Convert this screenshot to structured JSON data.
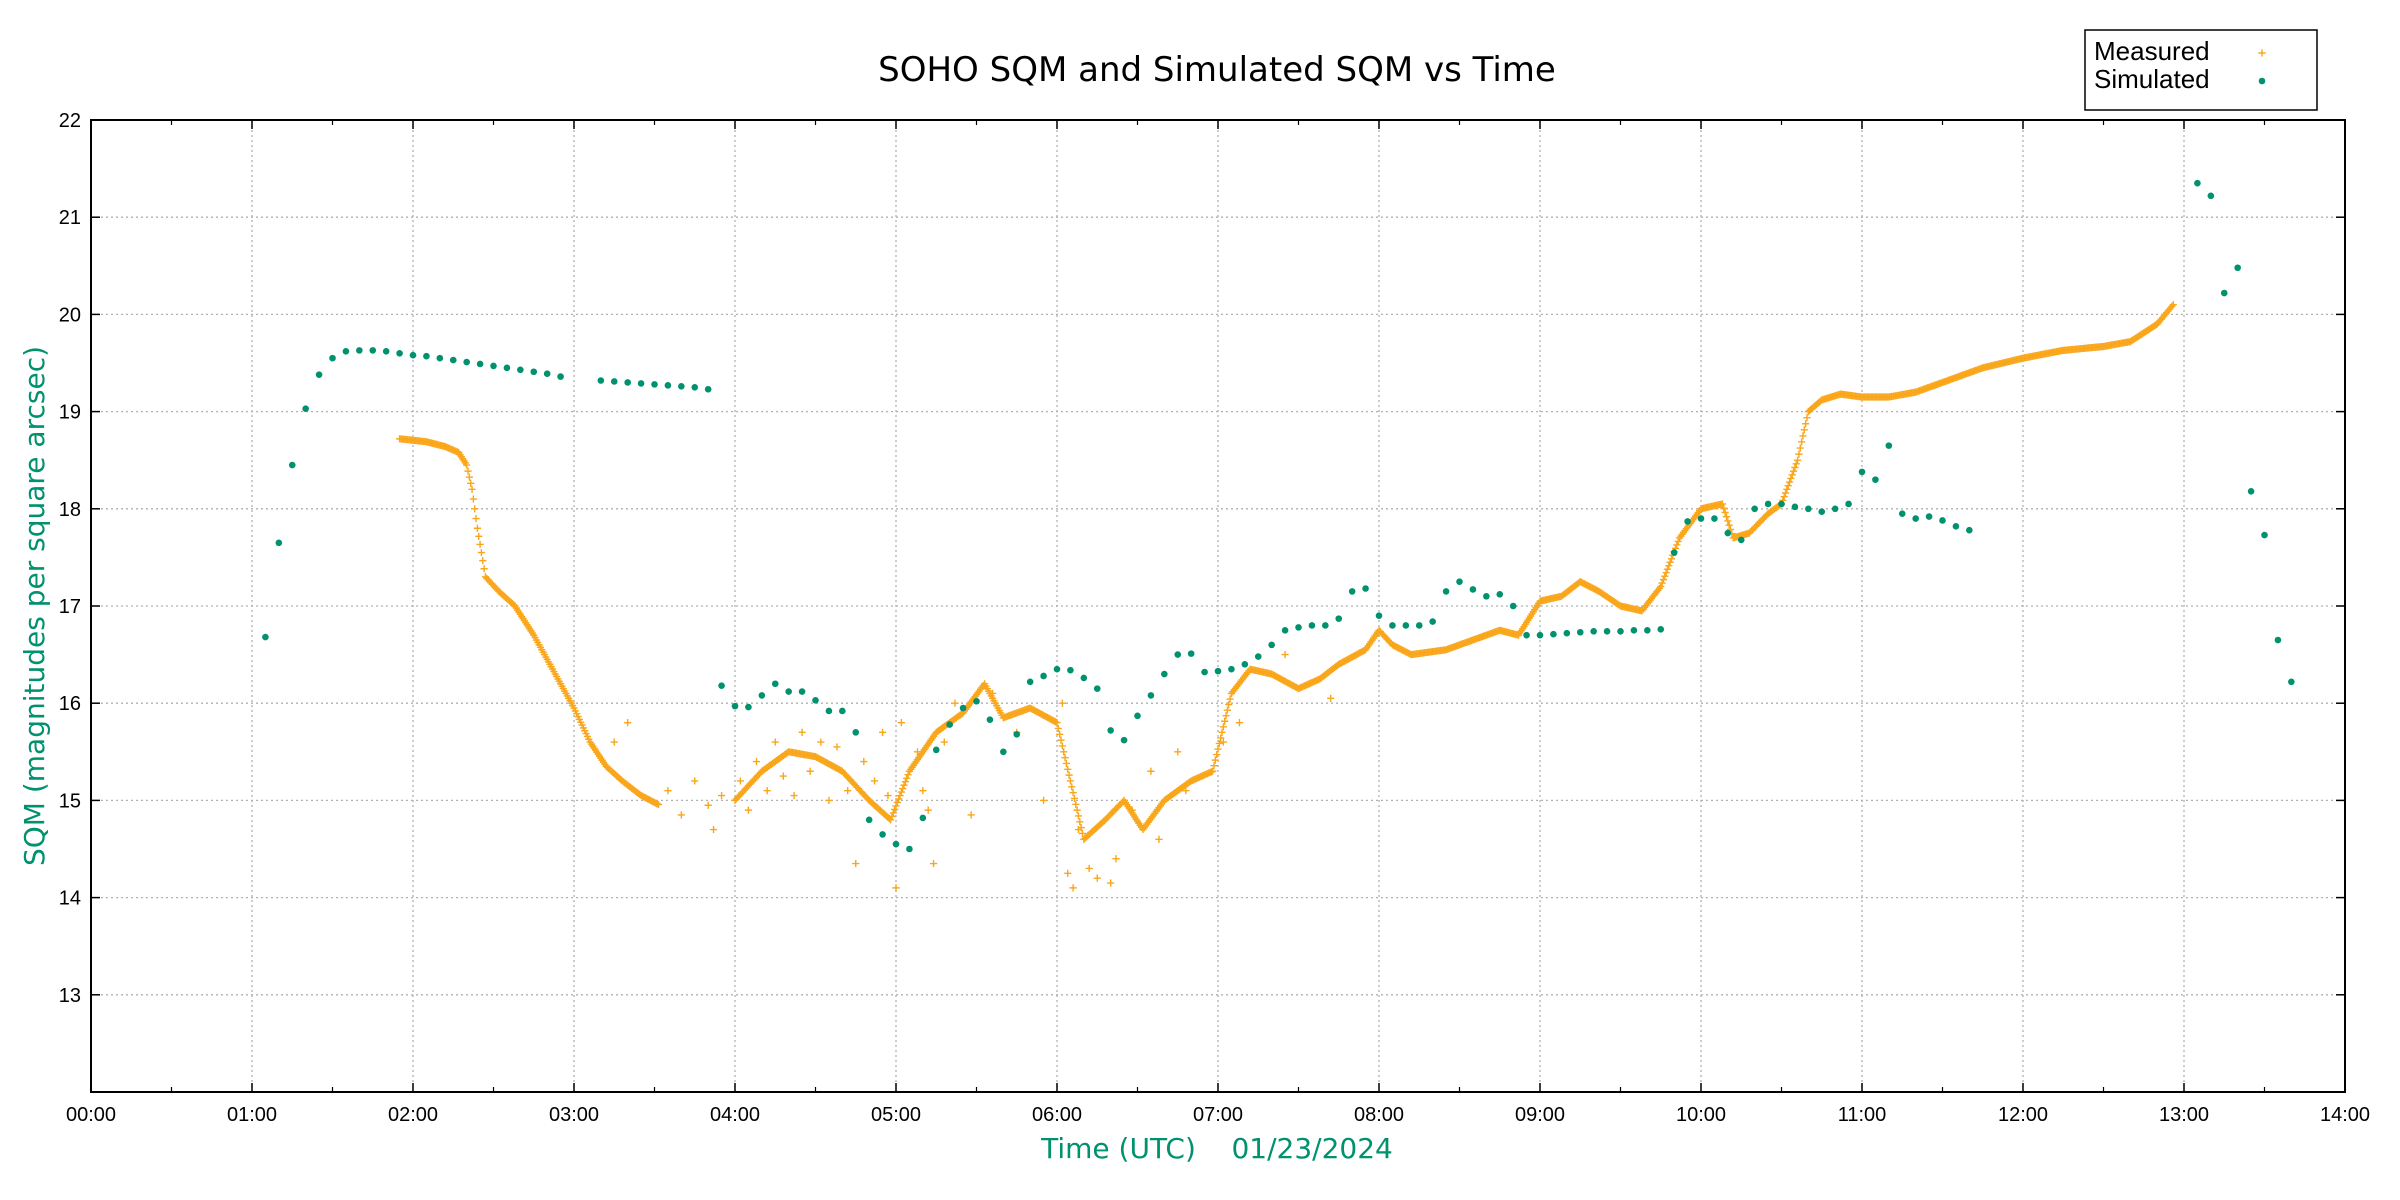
{
  "chart_data": {
    "type": "scatter",
    "title": "SOHO SQM and Simulated SQM vs Time",
    "xlabel": "Time (UTC)    01/23/2024",
    "ylabel": "SQM (magnitudes per square arcsec)",
    "label_color": "#00916e",
    "x_unit": "time",
    "xlim": [
      "00:00",
      "14:00"
    ],
    "ylim": [
      12,
      22
    ],
    "x_ticks": [
      "00:00",
      "01:00",
      "02:00",
      "03:00",
      "04:00",
      "05:00",
      "06:00",
      "07:00",
      "08:00",
      "09:00",
      "10:00",
      "11:00",
      "12:00",
      "13:00",
      "14:00"
    ],
    "y_ticks": [
      "13",
      "14",
      "15",
      "16",
      "17",
      "18",
      "19",
      "20",
      "21",
      "22"
    ],
    "grid": true,
    "legend_position": "top-right",
    "series": [
      {
        "name": "Measured",
        "color": "#f9a61b",
        "marker": "plus",
        "curve": [
          [
            "01:55",
            18.72
          ],
          [
            "02:05",
            18.69
          ],
          [
            "02:12",
            18.64
          ],
          [
            "02:17",
            18.58
          ],
          [
            "02:20",
            18.45
          ],
          [
            "02:22",
            18.2
          ],
          [
            "02:24",
            17.8
          ],
          [
            "02:27",
            17.3
          ],
          [
            "02:32",
            17.15
          ],
          [
            "02:38",
            17.0
          ],
          [
            "02:45",
            16.7
          ],
          [
            "02:52",
            16.35
          ],
          [
            "03:00",
            15.95
          ],
          [
            "03:06",
            15.6
          ],
          [
            "03:12",
            15.35
          ],
          [
            "03:18",
            15.2
          ],
          [
            "03:25",
            15.05
          ],
          [
            "03:32",
            14.95
          ],
          [
            "04:00",
            15.0
          ],
          [
            "04:10",
            15.3
          ],
          [
            "04:20",
            15.5
          ],
          [
            "04:30",
            15.45
          ],
          [
            "04:40",
            15.3
          ],
          [
            "04:50",
            15.0
          ],
          [
            "04:58",
            14.8
          ],
          [
            "05:05",
            15.3
          ],
          [
            "05:15",
            15.7
          ],
          [
            "05:25",
            15.9
          ],
          [
            "05:33",
            16.2
          ],
          [
            "05:40",
            15.85
          ],
          [
            "05:50",
            15.95
          ],
          [
            "06:00",
            15.8
          ],
          [
            "06:10",
            14.6
          ],
          [
            "06:18",
            14.8
          ],
          [
            "06:25",
            15.0
          ],
          [
            "06:32",
            14.7
          ],
          [
            "06:40",
            15.0
          ],
          [
            "06:50",
            15.2
          ],
          [
            "06:58",
            15.3
          ],
          [
            "07:05",
            16.1
          ],
          [
            "07:12",
            16.35
          ],
          [
            "07:20",
            16.3
          ],
          [
            "07:30",
            16.15
          ],
          [
            "07:38",
            16.25
          ],
          [
            "07:45",
            16.4
          ],
          [
            "07:55",
            16.55
          ],
          [
            "08:00",
            16.75
          ],
          [
            "08:05",
            16.6
          ],
          [
            "08:12",
            16.5
          ],
          [
            "08:25",
            16.55
          ],
          [
            "08:35",
            16.65
          ],
          [
            "08:45",
            16.75
          ],
          [
            "08:52",
            16.7
          ],
          [
            "09:00",
            17.05
          ],
          [
            "09:08",
            17.1
          ],
          [
            "09:15",
            17.25
          ],
          [
            "09:22",
            17.15
          ],
          [
            "09:30",
            17.0
          ],
          [
            "09:38",
            16.95
          ],
          [
            "09:45",
            17.2
          ],
          [
            "09:52",
            17.7
          ],
          [
            "10:00",
            18.0
          ],
          [
            "10:08",
            18.05
          ],
          [
            "10:12",
            17.7
          ],
          [
            "10:18",
            17.75
          ],
          [
            "10:25",
            17.95
          ],
          [
            "10:30",
            18.05
          ],
          [
            "10:36",
            18.5
          ],
          [
            "10:40",
            19.0
          ],
          [
            "10:45",
            19.12
          ],
          [
            "10:52",
            19.18
          ],
          [
            "11:00",
            19.15
          ],
          [
            "11:10",
            19.15
          ],
          [
            "11:20",
            19.2
          ],
          [
            "11:30",
            19.3
          ],
          [
            "11:45",
            19.45
          ],
          [
            "12:00",
            19.55
          ],
          [
            "12:15",
            19.63
          ],
          [
            "12:30",
            19.67
          ],
          [
            "12:40",
            19.72
          ],
          [
            "12:50",
            19.9
          ],
          [
            "12:56",
            20.1
          ]
        ],
        "scatter": [
          [
            "03:15",
            15.6
          ],
          [
            "03:20",
            15.8
          ],
          [
            "03:35",
            15.1
          ],
          [
            "03:40",
            14.85
          ],
          [
            "03:45",
            15.2
          ],
          [
            "03:50",
            14.95
          ],
          [
            "03:52",
            14.7
          ],
          [
            "03:55",
            15.05
          ],
          [
            "04:02",
            15.2
          ],
          [
            "04:05",
            14.9
          ],
          [
            "04:08",
            15.4
          ],
          [
            "04:12",
            15.1
          ],
          [
            "04:15",
            15.6
          ],
          [
            "04:18",
            15.25
          ],
          [
            "04:22",
            15.05
          ],
          [
            "04:25",
            15.7
          ],
          [
            "04:28",
            15.3
          ],
          [
            "04:32",
            15.6
          ],
          [
            "04:35",
            15.0
          ],
          [
            "04:38",
            15.55
          ],
          [
            "04:42",
            15.1
          ],
          [
            "04:45",
            14.35
          ],
          [
            "04:48",
            15.4
          ],
          [
            "04:52",
            15.2
          ],
          [
            "04:55",
            15.7
          ],
          [
            "04:57",
            15.05
          ],
          [
            "05:00",
            14.1
          ],
          [
            "05:02",
            15.8
          ],
          [
            "05:08",
            15.5
          ],
          [
            "05:10",
            15.1
          ],
          [
            "05:12",
            14.9
          ],
          [
            "05:14",
            14.35
          ],
          [
            "05:18",
            15.6
          ],
          [
            "05:22",
            16.0
          ],
          [
            "05:28",
            14.85
          ],
          [
            "05:36",
            16.1
          ],
          [
            "05:45",
            15.7
          ],
          [
            "05:55",
            15.0
          ],
          [
            "06:02",
            16.0
          ],
          [
            "06:04",
            14.25
          ],
          [
            "06:06",
            14.1
          ],
          [
            "06:08",
            14.7
          ],
          [
            "06:12",
            14.3
          ],
          [
            "06:15",
            14.2
          ],
          [
            "06:20",
            14.15
          ],
          [
            "06:22",
            14.4
          ],
          [
            "06:28",
            14.9
          ],
          [
            "06:35",
            15.3
          ],
          [
            "06:38",
            14.6
          ],
          [
            "06:45",
            15.5
          ],
          [
            "06:48",
            15.1
          ],
          [
            "07:02",
            15.6
          ],
          [
            "07:08",
            15.8
          ],
          [
            "07:25",
            16.5
          ],
          [
            "07:42",
            16.05
          ]
        ]
      },
      {
        "name": "Simulated",
        "color": "#00916e",
        "marker": "dot",
        "points": [
          [
            "01:05",
            16.68
          ],
          [
            "01:10",
            17.65
          ],
          [
            "01:15",
            18.45
          ],
          [
            "01:20",
            19.03
          ],
          [
            "01:25",
            19.38
          ],
          [
            "01:30",
            19.55
          ],
          [
            "01:35",
            19.62
          ],
          [
            "01:40",
            19.63
          ],
          [
            "01:45",
            19.63
          ],
          [
            "01:50",
            19.62
          ],
          [
            "01:55",
            19.6
          ],
          [
            "02:00",
            19.58
          ],
          [
            "02:05",
            19.57
          ],
          [
            "02:10",
            19.55
          ],
          [
            "02:15",
            19.53
          ],
          [
            "02:20",
            19.51
          ],
          [
            "02:25",
            19.49
          ],
          [
            "02:30",
            19.47
          ],
          [
            "02:35",
            19.45
          ],
          [
            "02:40",
            19.43
          ],
          [
            "02:45",
            19.41
          ],
          [
            "02:50",
            19.39
          ],
          [
            "02:55",
            19.36
          ],
          [
            "03:10",
            19.32
          ],
          [
            "03:15",
            19.31
          ],
          [
            "03:20",
            19.3
          ],
          [
            "03:25",
            19.29
          ],
          [
            "03:30",
            19.28
          ],
          [
            "03:35",
            19.27
          ],
          [
            "03:40",
            19.26
          ],
          [
            "03:45",
            19.25
          ],
          [
            "03:50",
            19.23
          ],
          [
            "03:55",
            16.18
          ],
          [
            "04:00",
            15.97
          ],
          [
            "04:05",
            15.96
          ],
          [
            "04:10",
            16.08
          ],
          [
            "04:15",
            16.2
          ],
          [
            "04:20",
            16.12
          ],
          [
            "04:25",
            16.12
          ],
          [
            "04:30",
            16.03
          ],
          [
            "04:35",
            15.92
          ],
          [
            "04:40",
            15.92
          ],
          [
            "04:45",
            15.7
          ],
          [
            "04:50",
            14.8
          ],
          [
            "04:55",
            14.65
          ],
          [
            "05:00",
            14.55
          ],
          [
            "05:05",
            14.5
          ],
          [
            "05:10",
            14.82
          ],
          [
            "05:15",
            15.52
          ],
          [
            "05:20",
            15.78
          ],
          [
            "05:25",
            15.95
          ],
          [
            "05:30",
            16.02
          ],
          [
            "05:35",
            15.83
          ],
          [
            "05:40",
            15.5
          ],
          [
            "05:45",
            15.68
          ],
          [
            "05:50",
            16.22
          ],
          [
            "05:55",
            16.28
          ],
          [
            "06:00",
            16.35
          ],
          [
            "06:05",
            16.34
          ],
          [
            "06:10",
            16.26
          ],
          [
            "06:15",
            16.15
          ],
          [
            "06:20",
            15.72
          ],
          [
            "06:25",
            15.62
          ],
          [
            "06:30",
            15.87
          ],
          [
            "06:35",
            16.08
          ],
          [
            "06:40",
            16.3
          ],
          [
            "06:45",
            16.5
          ],
          [
            "06:50",
            16.51
          ],
          [
            "06:55",
            16.32
          ],
          [
            "07:00",
            16.33
          ],
          [
            "07:05",
            16.35
          ],
          [
            "07:10",
            16.4
          ],
          [
            "07:15",
            16.48
          ],
          [
            "07:20",
            16.6
          ],
          [
            "07:25",
            16.75
          ],
          [
            "07:30",
            16.78
          ],
          [
            "07:35",
            16.8
          ],
          [
            "07:40",
            16.8
          ],
          [
            "07:45",
            16.87
          ],
          [
            "07:50",
            17.15
          ],
          [
            "07:55",
            17.18
          ],
          [
            "08:00",
            16.9
          ],
          [
            "08:05",
            16.8
          ],
          [
            "08:10",
            16.8
          ],
          [
            "08:15",
            16.8
          ],
          [
            "08:20",
            16.84
          ],
          [
            "08:25",
            17.15
          ],
          [
            "08:30",
            17.25
          ],
          [
            "08:35",
            17.17
          ],
          [
            "08:40",
            17.1
          ],
          [
            "08:45",
            17.12
          ],
          [
            "08:50",
            17.0
          ],
          [
            "08:55",
            16.7
          ],
          [
            "09:00",
            16.7
          ],
          [
            "09:05",
            16.71
          ],
          [
            "09:10",
            16.72
          ],
          [
            "09:15",
            16.73
          ],
          [
            "09:20",
            16.74
          ],
          [
            "09:25",
            16.74
          ],
          [
            "09:30",
            16.74
          ],
          [
            "09:35",
            16.75
          ],
          [
            "09:40",
            16.75
          ],
          [
            "09:45",
            16.76
          ],
          [
            "09:50",
            17.55
          ],
          [
            "09:55",
            17.87
          ],
          [
            "10:00",
            17.9
          ],
          [
            "10:05",
            17.9
          ],
          [
            "10:10",
            17.75
          ],
          [
            "10:15",
            17.68
          ],
          [
            "10:20",
            18.0
          ],
          [
            "10:25",
            18.05
          ],
          [
            "10:30",
            18.05
          ],
          [
            "10:35",
            18.02
          ],
          [
            "10:40",
            18.0
          ],
          [
            "10:45",
            17.97
          ],
          [
            "10:50",
            18.0
          ],
          [
            "10:55",
            18.05
          ],
          [
            "11:00",
            18.38
          ],
          [
            "11:05",
            18.3
          ],
          [
            "11:10",
            18.65
          ],
          [
            "11:15",
            17.95
          ],
          [
            "11:20",
            17.9
          ],
          [
            "11:25",
            17.92
          ],
          [
            "11:30",
            17.88
          ],
          [
            "11:35",
            17.82
          ],
          [
            "11:40",
            17.78
          ],
          [
            "13:05",
            21.35
          ],
          [
            "13:10",
            21.22
          ],
          [
            "13:15",
            20.22
          ],
          [
            "13:20",
            20.48
          ],
          [
            "13:25",
            18.18
          ],
          [
            "13:30",
            17.73
          ],
          [
            "13:35",
            16.65
          ],
          [
            "13:40",
            16.22
          ]
        ]
      }
    ]
  }
}
